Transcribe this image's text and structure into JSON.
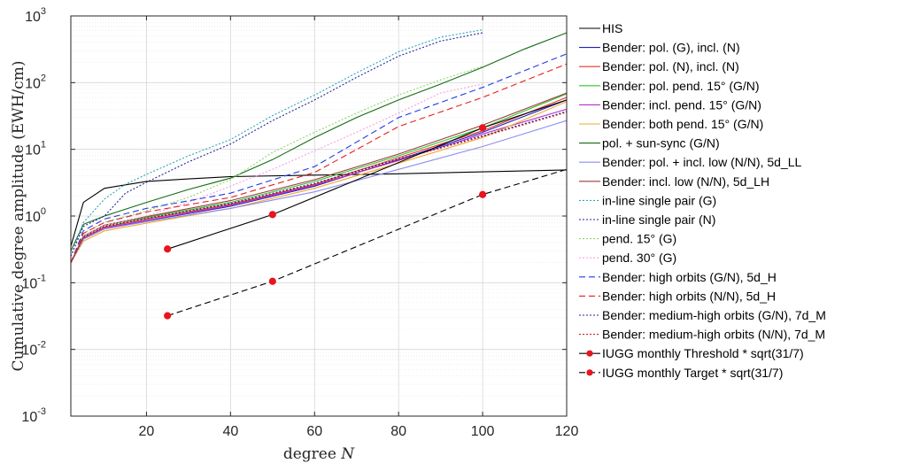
{
  "chart_data": {
    "type": "line",
    "title": "",
    "xlabel": "degree N",
    "ylabel": "Cumulative degree amplitude (EWH/cm)",
    "xlim": [
      2,
      120
    ],
    "ylim": [
      0.001,
      1000
    ],
    "yscale": "log",
    "grid": true,
    "legend_position": "right-outside",
    "x_ticks": [
      20,
      40,
      60,
      80,
      100,
      120
    ],
    "y_ticks": [
      {
        "value": 0.001,
        "base": "10",
        "exp": "-3"
      },
      {
        "value": 0.01,
        "base": "10",
        "exp": "-2"
      },
      {
        "value": 0.1,
        "base": "10",
        "exp": "-1"
      },
      {
        "value": 1,
        "base": "10",
        "exp": "0"
      },
      {
        "value": 10,
        "base": "10",
        "exp": "1"
      },
      {
        "value": 100,
        "base": "10",
        "exp": "2"
      },
      {
        "value": 1000,
        "base": "10",
        "exp": "3"
      }
    ],
    "series": [
      {
        "name": "HIS",
        "color": "#000000",
        "dash": "solid",
        "x": [
          2,
          5,
          10,
          20,
          30,
          40,
          60,
          80,
          100,
          120
        ],
        "y": [
          0.35,
          1.6,
          2.6,
          3.3,
          3.6,
          3.9,
          4.1,
          4.3,
          4.6,
          4.9
        ]
      },
      {
        "name": "Bender: pol. (G), incl. (N)",
        "color": "#1f1fbf",
        "dash": "solid",
        "x": [
          2,
          5,
          10,
          20,
          40,
          60,
          80,
          100,
          120
        ],
        "y": [
          0.2,
          0.45,
          0.65,
          0.85,
          1.4,
          2.8,
          7,
          18,
          55
        ]
      },
      {
        "name": "Bender: pol. (N), incl. (N)",
        "color": "#e8322a",
        "dash": "solid",
        "x": [
          2,
          5,
          10,
          20,
          40,
          60,
          80,
          100,
          120
        ],
        "y": [
          0.2,
          0.47,
          0.68,
          0.9,
          1.5,
          3,
          7.5,
          19,
          60
        ]
      },
      {
        "name": "Bender: pol. pend. 15° (G/N)",
        "color": "#2ec52e",
        "dash": "solid",
        "x": [
          2,
          5,
          10,
          20,
          40,
          60,
          80,
          100,
          120
        ],
        "y": [
          0.2,
          0.5,
          0.72,
          0.95,
          1.6,
          3.3,
          8,
          21,
          68
        ]
      },
      {
        "name": "Bender: incl. pend. 15° (G/N)",
        "color": "#b533c9",
        "dash": "solid",
        "x": [
          2,
          5,
          10,
          20,
          40,
          60,
          80,
          100,
          120
        ],
        "y": [
          0.2,
          0.46,
          0.66,
          0.86,
          1.45,
          2.9,
          6.8,
          17,
          40
        ]
      },
      {
        "name": "Bender: both pend. 15° (G/N)",
        "color": "#f0a92e",
        "dash": "solid",
        "x": [
          2,
          5,
          10,
          20,
          40,
          60,
          80,
          100,
          120
        ],
        "y": [
          0.2,
          0.42,
          0.6,
          0.78,
          1.3,
          2.6,
          6.2,
          15,
          52
        ]
      },
      {
        "name": "pol. + sun-sync (G/N)",
        "color": "#136b13",
        "dash": "solid",
        "x": [
          2,
          5,
          10,
          20,
          30,
          40,
          50,
          60,
          70,
          80,
          90,
          100,
          110,
          120
        ],
        "y": [
          0.3,
          0.75,
          1.0,
          1.6,
          2.5,
          3.7,
          7,
          15,
          30,
          55,
          95,
          170,
          320,
          560
        ]
      },
      {
        "name": "Bender: pol. + incl. low (N/N), 5d_LL",
        "color": "#8c8cf0",
        "dash": "solid",
        "x": [
          2,
          5,
          10,
          20,
          40,
          60,
          80,
          100,
          120
        ],
        "y": [
          0.2,
          0.45,
          0.64,
          0.82,
          1.3,
          2.3,
          5,
          11,
          27
        ]
      },
      {
        "name": "Bender: incl. low (N/N), 5d_LH",
        "color": "#9c3a3a",
        "dash": "solid",
        "x": [
          2,
          5,
          10,
          20,
          40,
          60,
          80,
          100,
          120
        ],
        "y": [
          0.2,
          0.5,
          0.73,
          0.98,
          1.7,
          3.5,
          8.5,
          23,
          70
        ]
      },
      {
        "name": "in-line single pair (G)",
        "color": "#2aa7b5",
        "dash": "dot",
        "x": [
          2,
          5,
          10,
          15,
          20,
          30,
          40,
          50,
          60,
          70,
          80,
          90,
          100
        ],
        "y": [
          0.25,
          0.8,
          1.8,
          3,
          4.2,
          8,
          14,
          32,
          65,
          140,
          290,
          480,
          620
        ]
      },
      {
        "name": "in-line single pair (N)",
        "color": "#22269e",
        "dash": "dot",
        "x": [
          2,
          5,
          10,
          15,
          20,
          30,
          40,
          50,
          60,
          70,
          80,
          90,
          100
        ],
        "y": [
          0.25,
          0.7,
          1.0,
          2.2,
          3.2,
          6.5,
          12,
          27,
          55,
          120,
          250,
          420,
          560
        ]
      },
      {
        "name": "pend. 15° (G)",
        "color": "#8fd66a",
        "dash": "dot",
        "x": [
          2,
          5,
          10,
          20,
          30,
          40,
          50,
          60,
          70,
          80,
          90,
          100
        ],
        "y": [
          0.2,
          0.55,
          0.8,
          1.2,
          1.9,
          3.5,
          9,
          18,
          35,
          65,
          110,
          175
        ]
      },
      {
        "name": "pend. 30° (G)",
        "color": "#f5a0e6",
        "dash": "dot",
        "x": [
          2,
          5,
          10,
          20,
          30,
          40,
          50,
          60,
          70,
          80,
          90,
          100
        ],
        "y": [
          0.2,
          0.5,
          0.72,
          1.0,
          1.6,
          2.8,
          5,
          9.5,
          18,
          35,
          70,
          95
        ]
      },
      {
        "name": "Bender: high orbits (G/N), 5d_H",
        "color": "#1f3ce8",
        "dash": "dash",
        "x": [
          2,
          5,
          10,
          20,
          40,
          60,
          80,
          100,
          120
        ],
        "y": [
          0.2,
          0.6,
          0.9,
          1.3,
          2.2,
          5.5,
          30,
          85,
          270
        ]
      },
      {
        "name": "Bender: high orbits (N/N), 5d_H",
        "color": "#e81f1f",
        "dash": "dash",
        "x": [
          2,
          5,
          10,
          20,
          40,
          60,
          80,
          100,
          120
        ],
        "y": [
          0.2,
          0.55,
          0.8,
          1.15,
          1.9,
          4.5,
          22,
          60,
          190
        ]
      },
      {
        "name": "Bender: medium-high orbits (G/N), 7d_M",
        "color": "#1c2a9e",
        "dash": "dot",
        "x": [
          2,
          5,
          10,
          20,
          40,
          60,
          80,
          100,
          120
        ],
        "y": [
          0.2,
          0.48,
          0.7,
          0.92,
          1.55,
          3.1,
          7.2,
          16,
          37
        ]
      },
      {
        "name": "Bender: medium-high orbits (N/N), 7d_M",
        "color": "#c81e1e",
        "dash": "dot",
        "x": [
          2,
          5,
          10,
          20,
          40,
          60,
          80,
          100,
          120
        ],
        "y": [
          0.2,
          0.47,
          0.69,
          0.9,
          1.5,
          3.0,
          7.0,
          15.5,
          36
        ]
      },
      {
        "name": "IUGG monthly Threshold * sqrt(31/7)",
        "color": "#000000",
        "dash": "solid",
        "marker": true,
        "x": [
          25,
          50,
          100,
          120
        ],
        "y": [
          0.32,
          1.05,
          21,
          55
        ],
        "marker_x": [
          25,
          50,
          100
        ],
        "marker_y": [
          0.32,
          1.05,
          21
        ]
      },
      {
        "name": "IUGG monthly Target * sqrt(31/7)",
        "color": "#000000",
        "dash": "dash",
        "marker": true,
        "x": [
          25,
          50,
          100,
          120
        ],
        "y": [
          0.032,
          0.105,
          2.1,
          5.0
        ],
        "marker_x": [
          25,
          50,
          100
        ],
        "marker_y": [
          0.032,
          0.105,
          2.1
        ]
      }
    ]
  }
}
